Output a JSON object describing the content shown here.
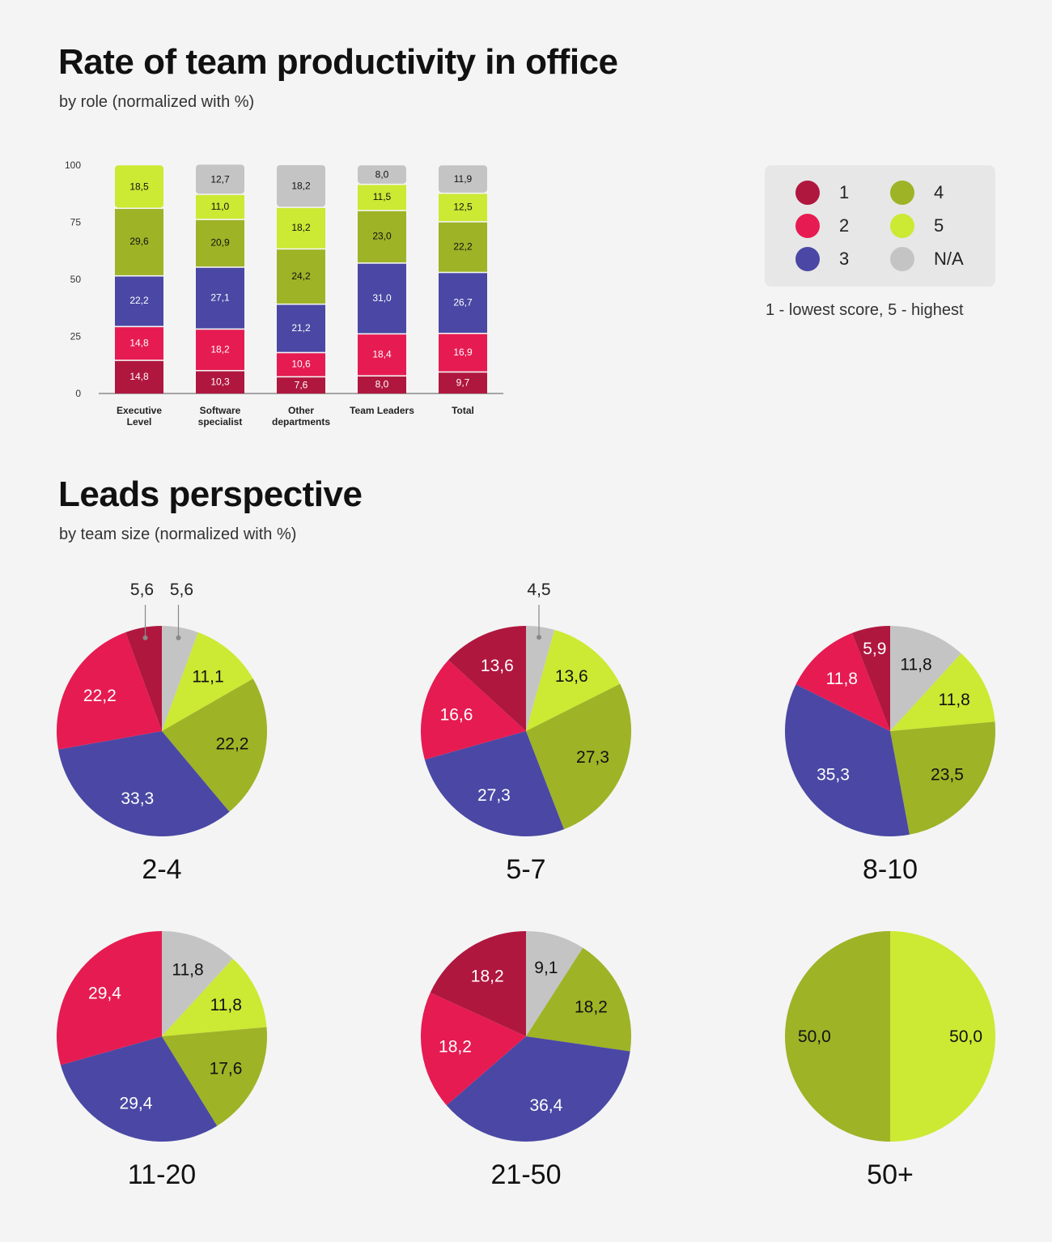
{
  "titles": {
    "bar_title": "Rate of team productivity in office",
    "bar_subtitle": "by role (normalized with %)",
    "pie_title": "Leads perspective",
    "pie_subtitle": "by team size (normalized with %)"
  },
  "legend": {
    "items": [
      {
        "key": "1",
        "label": "1",
        "color": "#b0173f"
      },
      {
        "key": "2",
        "label": "2",
        "color": "#e61b52"
      },
      {
        "key": "3",
        "label": "3",
        "color": "#4a48a4"
      },
      {
        "key": "4",
        "label": "4",
        "color": "#9eb326"
      },
      {
        "key": "5",
        "label": "5",
        "color": "#cce933"
      },
      {
        "key": "NA",
        "label": "N/A",
        "color": "#c4c4c4"
      }
    ],
    "note": "1 - lowest score, 5 - highest"
  },
  "chart_data": [
    {
      "type": "bar",
      "stacked": true,
      "title": "Rate of team productivity in office",
      "subtitle": "by role (normalized with %)",
      "ylim": [
        0,
        100
      ],
      "yticks": [
        "0",
        "25",
        "50",
        "75",
        "100"
      ],
      "categories": [
        [
          "Executive",
          "Level"
        ],
        [
          "Software",
          "specialist"
        ],
        [
          "Other",
          "departments"
        ],
        [
          "Team Leaders"
        ],
        [
          "Total"
        ]
      ],
      "series": [
        {
          "name": "1",
          "color": "#b0173f",
          "values": [
            14.8,
            10.3,
            7.6,
            8.0,
            9.7
          ],
          "labels": [
            "14,8",
            "10,3",
            "7,6",
            "8,0",
            "9,7"
          ]
        },
        {
          "name": "2",
          "color": "#e61b52",
          "values": [
            14.8,
            18.2,
            10.6,
            18.4,
            16.9
          ],
          "labels": [
            "14,8",
            "18,2",
            "10,6",
            "18,4",
            "16,9"
          ]
        },
        {
          "name": "3",
          "color": "#4a48a4",
          "values": [
            22.2,
            27.1,
            21.2,
            31.0,
            26.7
          ],
          "labels": [
            "22,2",
            "27,1",
            "21,2",
            "31,0",
            "26,7"
          ]
        },
        {
          "name": "4",
          "color": "#9eb326",
          "values": [
            29.6,
            20.9,
            24.2,
            23.0,
            22.2
          ],
          "labels": [
            "29,6",
            "20,9",
            "24,2",
            "23,0",
            "22,2"
          ]
        },
        {
          "name": "5",
          "color": "#cce933",
          "values": [
            18.5,
            11.0,
            18.2,
            11.5,
            12.5
          ],
          "labels": [
            "18,5",
            "11,0",
            "18,2",
            "11,5",
            "12,5"
          ]
        },
        {
          "name": "N/A",
          "color": "#c4c4c4",
          "values": [
            0,
            12.7,
            18.2,
            8.0,
            11.9
          ],
          "labels": [
            "",
            "12,7",
            "18,2",
            "8,0",
            "11,9"
          ]
        }
      ]
    },
    {
      "type": "pie",
      "title": "Leads perspective",
      "subtitle": "by team size (normalized with %)",
      "slice_order": [
        "N/A",
        "5",
        "4",
        "3",
        "2",
        "1"
      ],
      "colors": {
        "1": "#b0173f",
        "2": "#e61b52",
        "3": "#4a48a4",
        "4": "#9eb326",
        "5": "#cce933",
        "N/A": "#c4c4c4"
      },
      "pies": [
        {
          "label": "2-4",
          "slices": [
            {
              "key": "N/A",
              "value": 5.6,
              "text": "5,6",
              "outside": true
            },
            {
              "key": "5",
              "value": 11.1,
              "text": "11,1"
            },
            {
              "key": "4",
              "value": 22.2,
              "text": "22,2"
            },
            {
              "key": "3",
              "value": 33.3,
              "text": "33,3"
            },
            {
              "key": "2",
              "value": 22.2,
              "text": "22,2"
            },
            {
              "key": "1",
              "value": 5.6,
              "text": "5,6",
              "outside": true
            }
          ]
        },
        {
          "label": "5-7",
          "slices": [
            {
              "key": "N/A",
              "value": 4.5,
              "text": "4,5",
              "outside": true
            },
            {
              "key": "5",
              "value": 13.6,
              "text": "13,6"
            },
            {
              "key": "4",
              "value": 27.3,
              "text": "27,3"
            },
            {
              "key": "3",
              "value": 27.3,
              "text": "27,3"
            },
            {
              "key": "2",
              "value": 16.6,
              "text": "16,6"
            },
            {
              "key": "1",
              "value": 13.6,
              "text": "13,6"
            }
          ]
        },
        {
          "label": "8-10",
          "slices": [
            {
              "key": "N/A",
              "value": 11.8,
              "text": "11,8"
            },
            {
              "key": "5",
              "value": 11.8,
              "text": "11,8"
            },
            {
              "key": "4",
              "value": 23.5,
              "text": "23,5"
            },
            {
              "key": "3",
              "value": 35.3,
              "text": "35,3"
            },
            {
              "key": "2",
              "value": 11.8,
              "text": "11,8"
            },
            {
              "key": "1",
              "value": 5.9,
              "text": "5,9"
            }
          ]
        },
        {
          "label": "11-20",
          "slices": [
            {
              "key": "N/A",
              "value": 11.8,
              "text": "11,8"
            },
            {
              "key": "5",
              "value": 11.8,
              "text": "11,8"
            },
            {
              "key": "4",
              "value": 17.6,
              "text": "17,6"
            },
            {
              "key": "3",
              "value": 29.4,
              "text": "29,4"
            },
            {
              "key": "2",
              "value": 29.4,
              "text": "29,4"
            }
          ]
        },
        {
          "label": "21-50",
          "slices": [
            {
              "key": "N/A",
              "value": 9.1,
              "text": "9,1"
            },
            {
              "key": "4",
              "value": 18.2,
              "text": "18,2"
            },
            {
              "key": "3",
              "value": 36.4,
              "text": "36,4"
            },
            {
              "key": "2",
              "value": 18.2,
              "text": "18,2"
            },
            {
              "key": "1",
              "value": 18.2,
              "text": "18,2"
            }
          ]
        },
        {
          "label": "50+",
          "slices": [
            {
              "key": "5",
              "value": 50.0,
              "text": "50,0"
            },
            {
              "key": "4",
              "value": 50.0,
              "text": "50,0"
            }
          ]
        }
      ]
    }
  ]
}
